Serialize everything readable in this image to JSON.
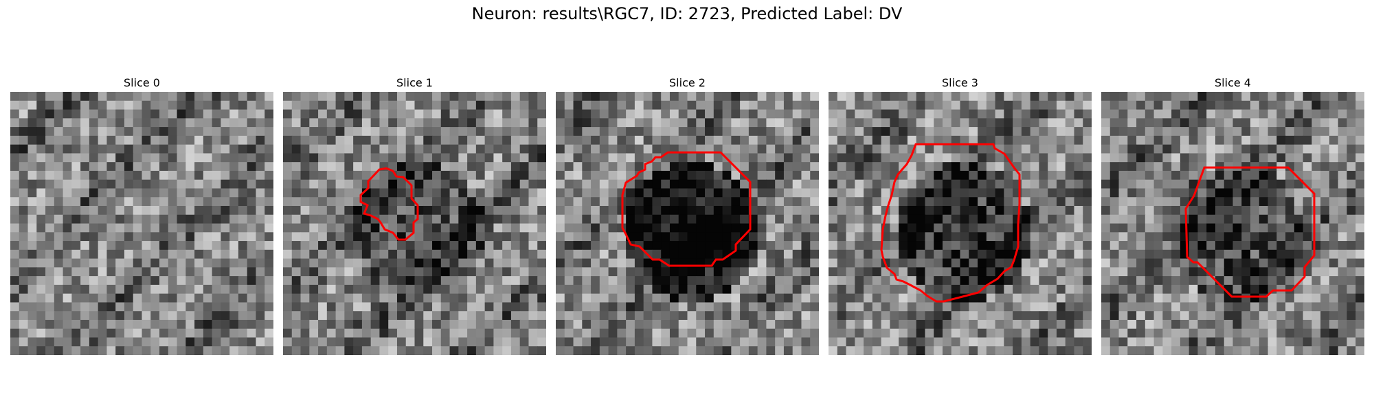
{
  "figure": {
    "title": "Neuron: results\\RGC7, ID: 2723, Predicted Label: DV"
  },
  "panels": [
    {
      "title": "Slice 0",
      "has_contour": false,
      "darkness": 0.0,
      "seed": 11
    },
    {
      "title": "Slice 1",
      "has_contour": true,
      "darkness": 0.35,
      "seed": 23
    },
    {
      "title": "Slice 2",
      "has_contour": true,
      "darkness": 0.85,
      "seed": 37
    },
    {
      "title": "Slice 3",
      "has_contour": true,
      "darkness": 0.55,
      "seed": 41
    },
    {
      "title": "Slice 4",
      "has_contour": true,
      "darkness": 0.4,
      "seed": 53
    }
  ],
  "colors": {
    "contour": "#ff0000",
    "background": "#ffffff"
  }
}
